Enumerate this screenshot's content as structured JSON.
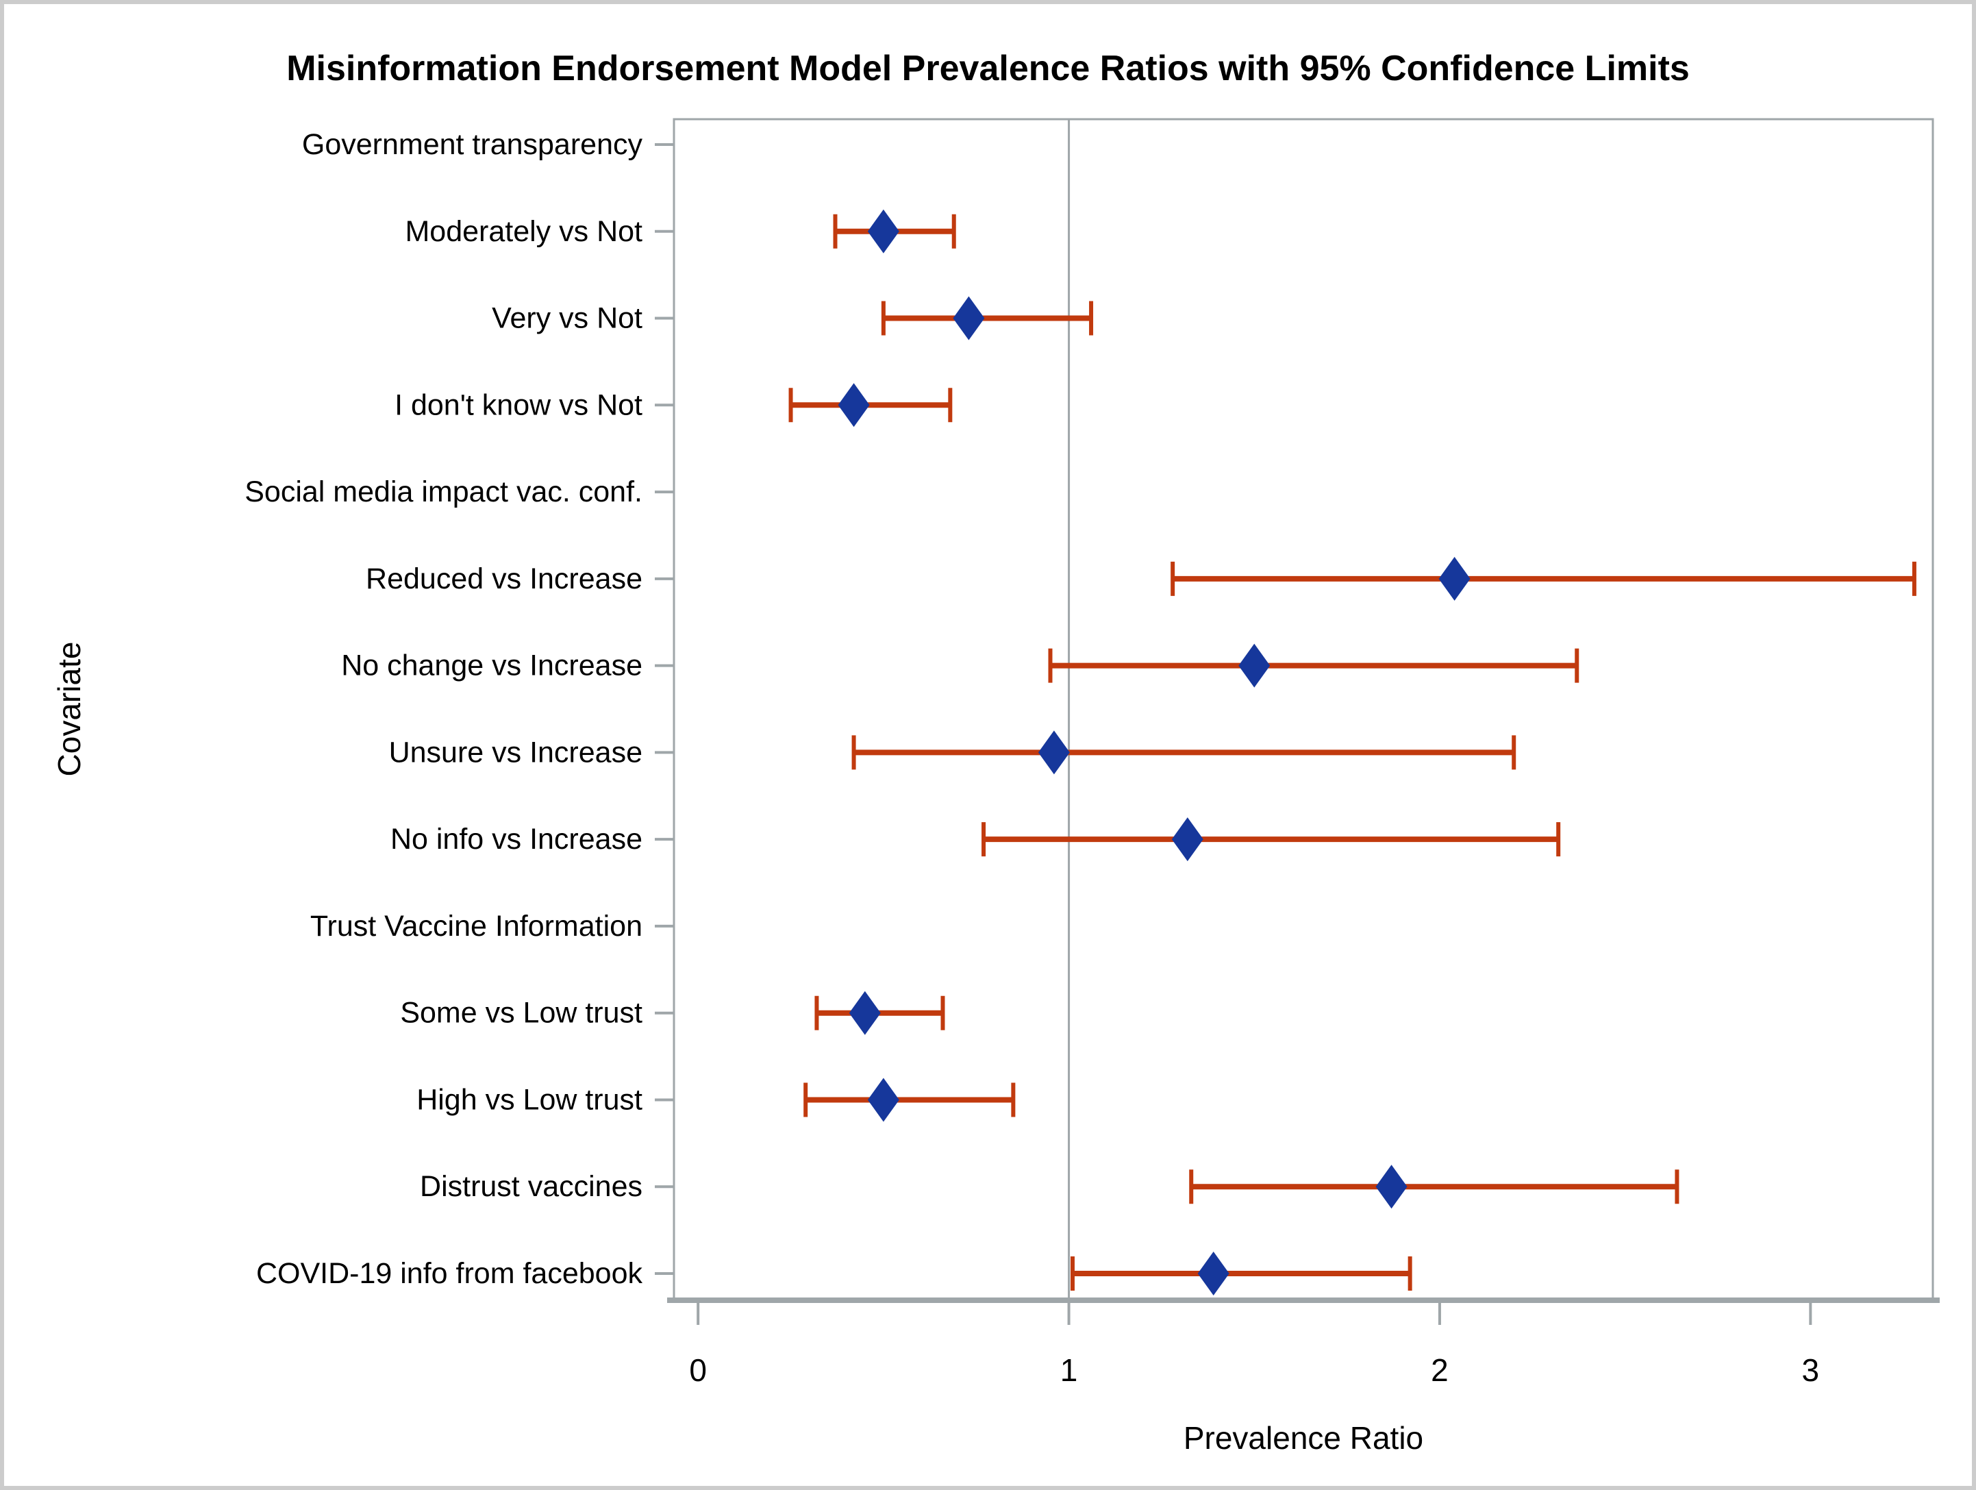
{
  "chart_data": {
    "type": "scatter",
    "subtype": "forest-plot",
    "title": "Misinformation Endorsement Model Prevalence Ratios with 95% Confidence Limits",
    "xlabel": "Prevalence Ratio",
    "ylabel": "Covariate",
    "xlim": [
      -0.065,
      3.33
    ],
    "x_ticks": [
      0,
      1,
      2,
      3
    ],
    "reference_line_x": 1,
    "grid": false,
    "legend": "none",
    "marker_shape": "diamond-filled",
    "error_bar_style": "capped",
    "rows": [
      {
        "label": "Government transparency",
        "group_header": true,
        "estimate": null,
        "lower": null,
        "upper": null
      },
      {
        "label": "Moderately vs Not",
        "group_header": false,
        "estimate": 0.5,
        "lower": 0.37,
        "upper": 0.69
      },
      {
        "label": "Very vs Not",
        "group_header": false,
        "estimate": 0.73,
        "lower": 0.5,
        "upper": 1.06
      },
      {
        "label": "I don't know vs Not",
        "group_header": false,
        "estimate": 0.42,
        "lower": 0.25,
        "upper": 0.68
      },
      {
        "label": "Social media impact vac. conf.",
        "group_header": true,
        "estimate": null,
        "lower": null,
        "upper": null
      },
      {
        "label": "Reduced vs Increase",
        "group_header": false,
        "estimate": 2.04,
        "lower": 1.28,
        "upper": 3.28
      },
      {
        "label": "No change vs Increase",
        "group_header": false,
        "estimate": 1.5,
        "lower": 0.95,
        "upper": 2.37
      },
      {
        "label": "Unsure vs Increase",
        "group_header": false,
        "estimate": 0.96,
        "lower": 0.42,
        "upper": 2.2
      },
      {
        "label": "No info vs Increase",
        "group_header": false,
        "estimate": 1.32,
        "lower": 0.77,
        "upper": 2.32
      },
      {
        "label": "Trust Vaccine Information",
        "group_header": true,
        "estimate": null,
        "lower": null,
        "upper": null
      },
      {
        "label": "Some vs Low trust",
        "group_header": false,
        "estimate": 0.45,
        "lower": 0.32,
        "upper": 0.66
      },
      {
        "label": "High vs Low trust",
        "group_header": false,
        "estimate": 0.5,
        "lower": 0.29,
        "upper": 0.85
      },
      {
        "label": "Distrust vaccines",
        "group_header": false,
        "estimate": 1.87,
        "lower": 1.33,
        "upper": 2.64
      },
      {
        "label": "COVID-19 info from facebook",
        "group_header": false,
        "estimate": 1.39,
        "lower": 1.01,
        "upper": 1.92
      }
    ],
    "colors": {
      "marker": "#16379b",
      "error_bar": "#c13a0e",
      "axis": "#9fa6a9",
      "text": "#000000",
      "figure_border": "#cccccc",
      "background": "#ffffff"
    }
  }
}
